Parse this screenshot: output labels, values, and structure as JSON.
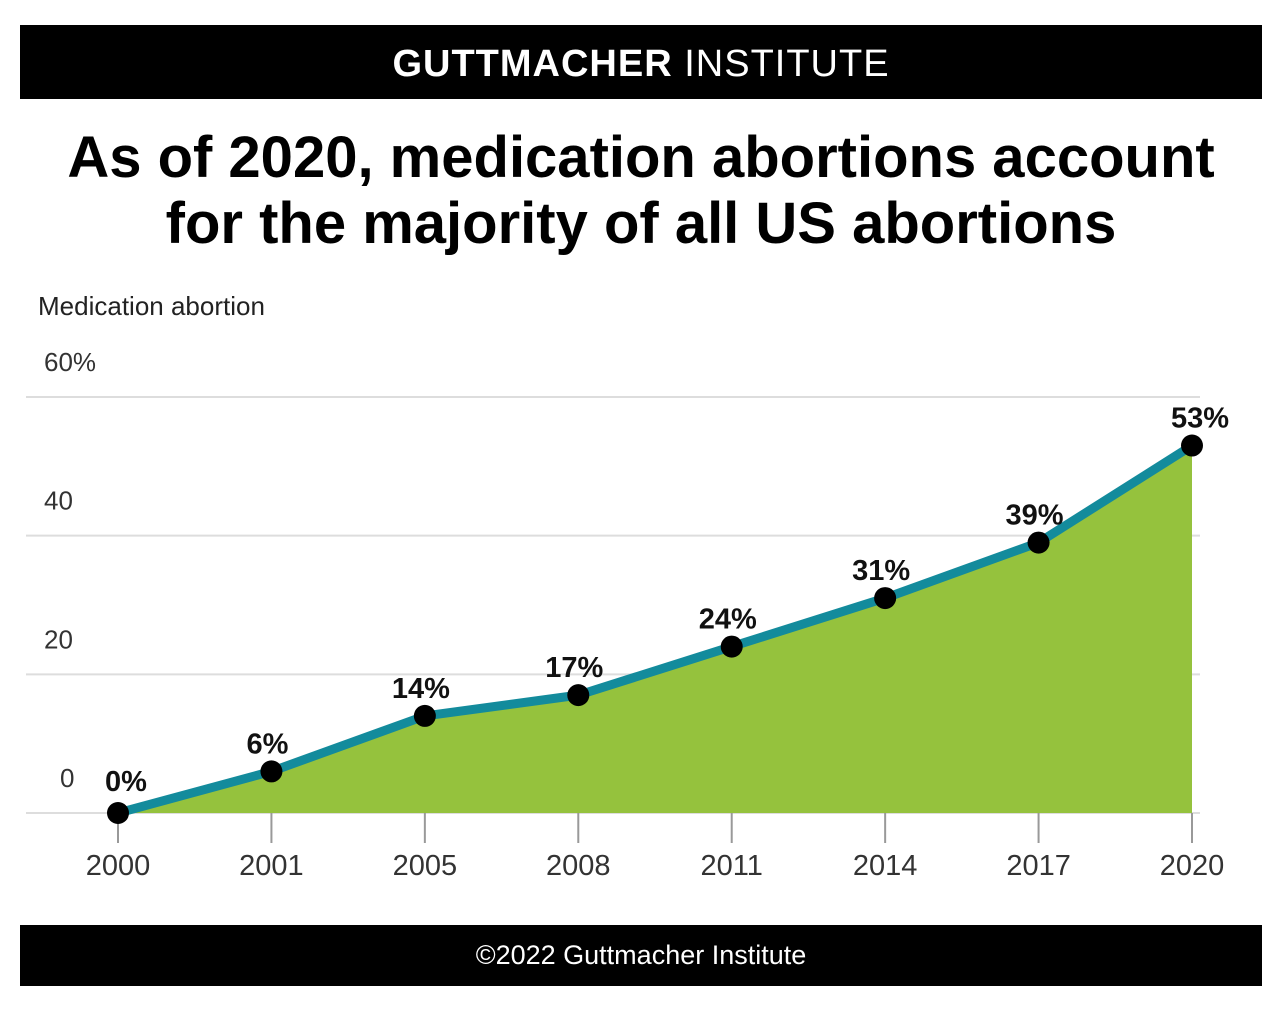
{
  "header": {
    "brand_bold": "GUTTMACHER",
    "brand_light": "INSTITUTE"
  },
  "footer": {
    "copyright": "©2022 Guttmacher Institute"
  },
  "colors": {
    "area_fill": "#95c23d",
    "line": "#138b9c",
    "point": "#000000",
    "gridline": "#dddddd",
    "bar": "#000000"
  },
  "chart_data": {
    "type": "area",
    "title_lines": [
      "As of 2020, medication abortions account",
      "for the majority of all US abortions"
    ],
    "ylabel": "Medication abortion",
    "x": [
      "2000",
      "2001",
      "2005",
      "2008",
      "2011",
      "2014",
      "2017",
      "2020"
    ],
    "values": [
      0,
      6,
      14,
      17,
      24,
      31,
      39,
      53
    ],
    "data_labels": [
      "0%",
      "6%",
      "14%",
      "17%",
      "24%",
      "31%",
      "39%",
      "53%"
    ],
    "ylim": [
      0,
      60
    ],
    "yticks": [
      {
        "value": 0,
        "label": "0"
      },
      {
        "value": 20,
        "label": "20"
      },
      {
        "value": 40,
        "label": "40"
      },
      {
        "value": 60,
        "label": "60%"
      }
    ],
    "grid": true
  }
}
